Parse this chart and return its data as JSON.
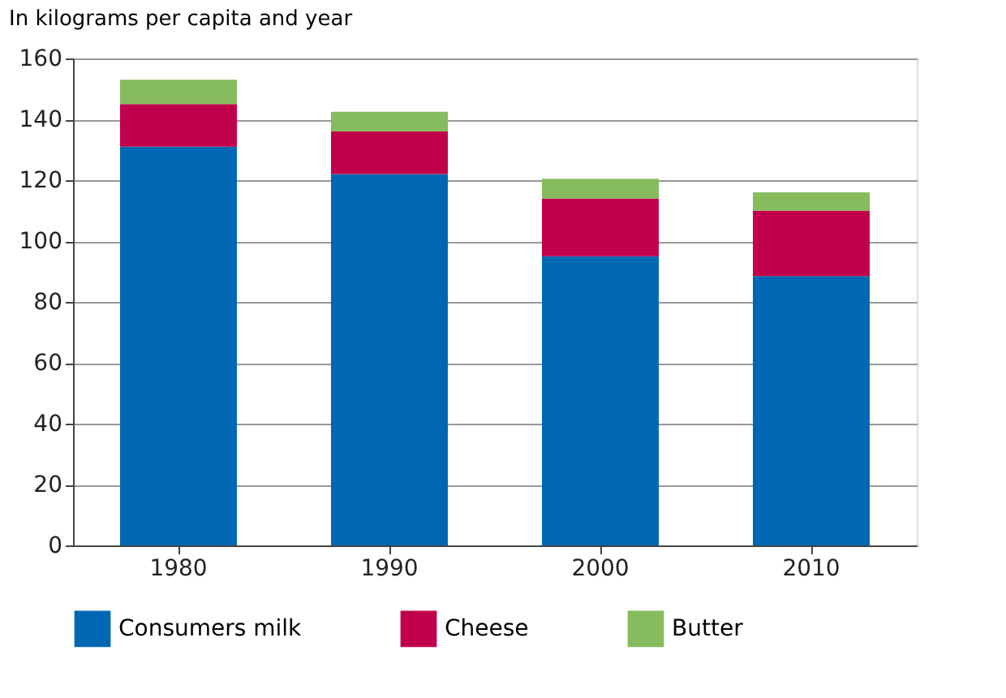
{
  "chart_data": {
    "type": "bar",
    "stacked": true,
    "ylabel": "In kilograms per capita and year",
    "categories": [
      "1980",
      "1990",
      "2000",
      "2010"
    ],
    "series": [
      {
        "name": "Consumers milk",
        "color": "#0068b3",
        "values": [
          131,
          122,
          95,
          88.5
        ]
      },
      {
        "name": "Cheese",
        "color": "#c0004a",
        "values": [
          14,
          14,
          19,
          21.5
        ]
      },
      {
        "name": "Butter",
        "color": "#86bc5e",
        "values": [
          8,
          6.5,
          6.5,
          6
        ]
      }
    ],
    "ylim": [
      0,
      160
    ],
    "yticks": [
      0,
      20,
      40,
      60,
      80,
      100,
      120,
      140,
      160
    ],
    "grid": "y",
    "legend": "bottom"
  }
}
